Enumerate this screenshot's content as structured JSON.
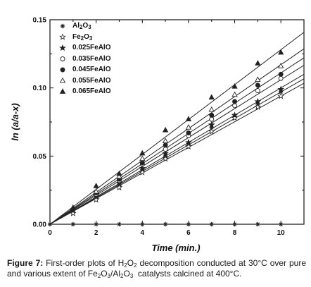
{
  "chart_data": {
    "type": "scatter",
    "xlabel": "Time (min.)",
    "ylabel": "ln (a/a-x)",
    "xlim": [
      0,
      11
    ],
    "ylim": [
      0,
      0.15
    ],
    "x_ticks": [
      "0",
      "2",
      "4",
      "6",
      "8",
      "10"
    ],
    "y_ticks": [
      "0.00",
      "0.05",
      "0.10",
      "0.15"
    ],
    "grid": false,
    "legend_position": "top-left",
    "x": [
      1,
      2,
      3,
      4,
      5,
      6,
      7,
      8,
      9,
      10
    ],
    "series": [
      {
        "name": "Al2O3",
        "name_html": "Al<sub>2</sub>O<sub>3</sub>",
        "marker": "asterisk",
        "values": [
          0.009,
          0.019,
          0.028,
          0.04,
          0.05,
          0.058,
          0.071,
          0.079,
          0.088,
          0.097
        ],
        "fit_slope": 0.0097
      },
      {
        "name": "Fe2O3",
        "name_html": "Fe<sub>2</sub>O<sub>3</sub>",
        "marker": "star-open",
        "values": [
          0.008,
          0.018,
          0.027,
          0.038,
          0.048,
          0.057,
          0.068,
          0.078,
          0.086,
          0.094
        ],
        "fit_slope": 0.0094
      },
      {
        "name": "0.025FeAlO",
        "name_html": "0.025FeAlO",
        "marker": "star-filled",
        "values": [
          0.01,
          0.021,
          0.03,
          0.041,
          0.052,
          0.06,
          0.073,
          0.08,
          0.09,
          0.099
        ],
        "fit_slope": 0.01
      },
      {
        "name": "0.035FeAlO",
        "name_html": "0.035FeAlO",
        "marker": "circle-open",
        "values": [
          0.011,
          0.022,
          0.032,
          0.044,
          0.055,
          0.065,
          0.077,
          0.087,
          0.098,
          0.107
        ],
        "fit_slope": 0.0106
      },
      {
        "name": "0.045FeAlO",
        "name_html": "0.045FeAlO",
        "marker": "circle-filled",
        "values": [
          0.011,
          0.023,
          0.033,
          0.045,
          0.058,
          0.067,
          0.08,
          0.09,
          0.102,
          0.11
        ],
        "fit_slope": 0.0111
      },
      {
        "name": "0.055FeAlO",
        "name_html": "0.055FeAlO",
        "marker": "triangle-open",
        "values": [
          0.012,
          0.024,
          0.035,
          0.048,
          0.061,
          0.071,
          0.084,
          0.095,
          0.106,
          0.116
        ],
        "fit_slope": 0.0117
      },
      {
        "name": "0.065FeAlO",
        "name_html": "0.065FeAlO",
        "marker": "triangle-filled",
        "values": [
          0.012,
          0.028,
          0.037,
          0.052,
          0.069,
          0.077,
          0.093,
          0.101,
          0.118,
          0.126
        ],
        "fit_slope": 0.0128
      }
    ]
  },
  "caption": {
    "label": "Figure 7:",
    "text_html": " First-order plots of H<sub>2</sub>O<sub>2</sub> decomposition conducted at 30°C over pure and various extent of Fe<sub>2</sub>O<sub>3</sub>/Al<sub>2</sub>O<sub>3</sub>&nbsp; catalysts calcined at 400°C.",
    "text_plain": "First-order plots of H2O2 decomposition conducted at 30°C over pure and various extent of Fe2O3/Al2O3 catalysts calcined at 400°C."
  }
}
